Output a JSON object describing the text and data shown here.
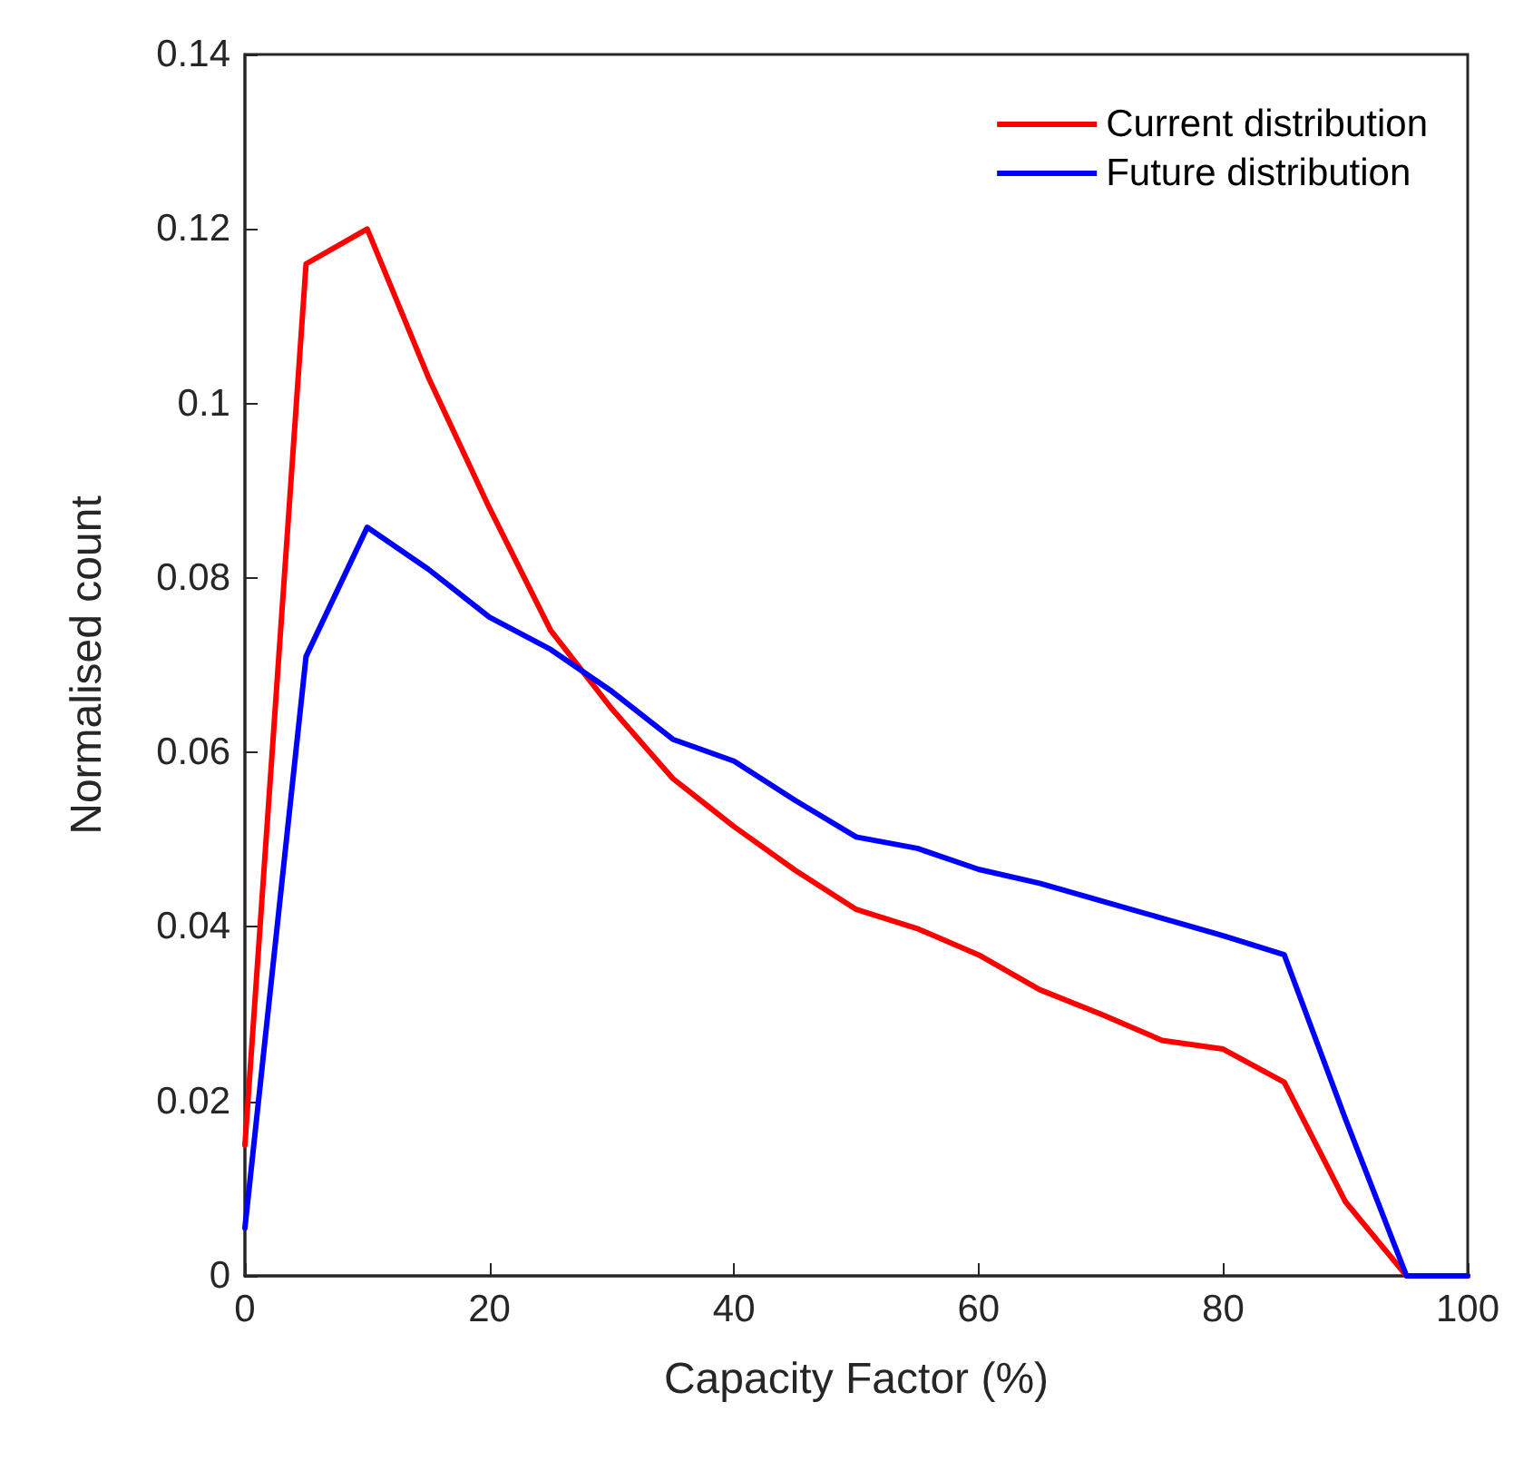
{
  "chart_data": {
    "type": "line",
    "xlabel": "Capacity Factor (%)",
    "ylabel": "Normalised count",
    "x": [
      0,
      5,
      10,
      15,
      20,
      25,
      30,
      35,
      40,
      45,
      50,
      55,
      60,
      65,
      70,
      75,
      80,
      85,
      90,
      95,
      100
    ],
    "series": [
      {
        "name": "Current distribution",
        "color": "#ff0000",
        "values": [
          0.015,
          0.116,
          0.12,
          0.103,
          0.088,
          0.074,
          0.065,
          0.057,
          0.0515,
          0.0465,
          0.042,
          0.0398,
          0.0368,
          0.0328,
          0.03,
          0.027,
          0.026,
          0.0222,
          0.0085,
          0,
          0
        ]
      },
      {
        "name": "Future distribution",
        "color": "#0000ff",
        "values": [
          0.0055,
          0.071,
          0.0858,
          0.081,
          0.0755,
          0.0718,
          0.067,
          0.0615,
          0.059,
          0.0545,
          0.0503,
          0.049,
          0.0466,
          0.045,
          0.043,
          0.041,
          0.039,
          0.0368,
          0.018,
          0,
          0
        ]
      }
    ],
    "xlim": [
      0,
      100
    ],
    "xticks": [
      0,
      20,
      40,
      60,
      80,
      100
    ],
    "ylim": [
      0,
      0.14
    ],
    "yticks": [
      0,
      0.02,
      0.04,
      0.06,
      0.08,
      0.1,
      0.12,
      0.14
    ],
    "grid": false,
    "legend": "top right",
    "marker": "none",
    "line_style": "solid"
  }
}
